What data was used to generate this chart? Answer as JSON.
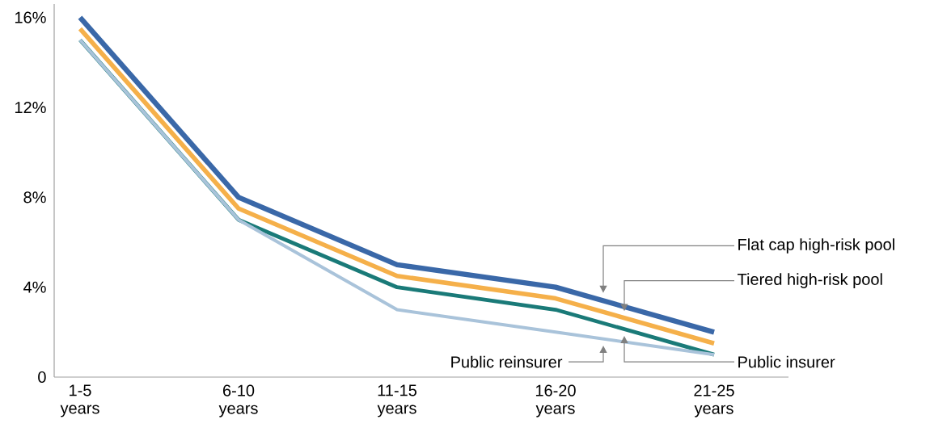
{
  "chart_data": {
    "type": "line",
    "categories": [
      "1-5 years",
      "6-10 years",
      "11-15 years",
      "16-20 years",
      "21-25 years"
    ],
    "series": [
      {
        "name": "Flat cap high-risk pool",
        "color": "#3a68a8",
        "values": [
          16,
          8,
          5,
          4,
          2
        ]
      },
      {
        "name": "Tiered high-risk pool",
        "color": "#f5b04a",
        "values": [
          15.5,
          7.5,
          4.5,
          3.5,
          1.5
        ]
      },
      {
        "name": "Public insurer",
        "color": "#1a7a78",
        "values": [
          15,
          7,
          4,
          3,
          1
        ]
      },
      {
        "name": "Public reinsurer",
        "color": "#a9c3da",
        "values": [
          15,
          7,
          3,
          2,
          1
        ]
      }
    ],
    "ylim": [
      0,
      16.6
    ],
    "yticks": [
      0,
      {
        "value": 4,
        "label": "4%"
      },
      {
        "value": 8,
        "label": "8%"
      },
      {
        "value": 12,
        "label": "12%"
      },
      {
        "value": 16,
        "label": "16%"
      }
    ],
    "grid": false,
    "legend": false,
    "marker": "none",
    "line_style": "solid"
  }
}
